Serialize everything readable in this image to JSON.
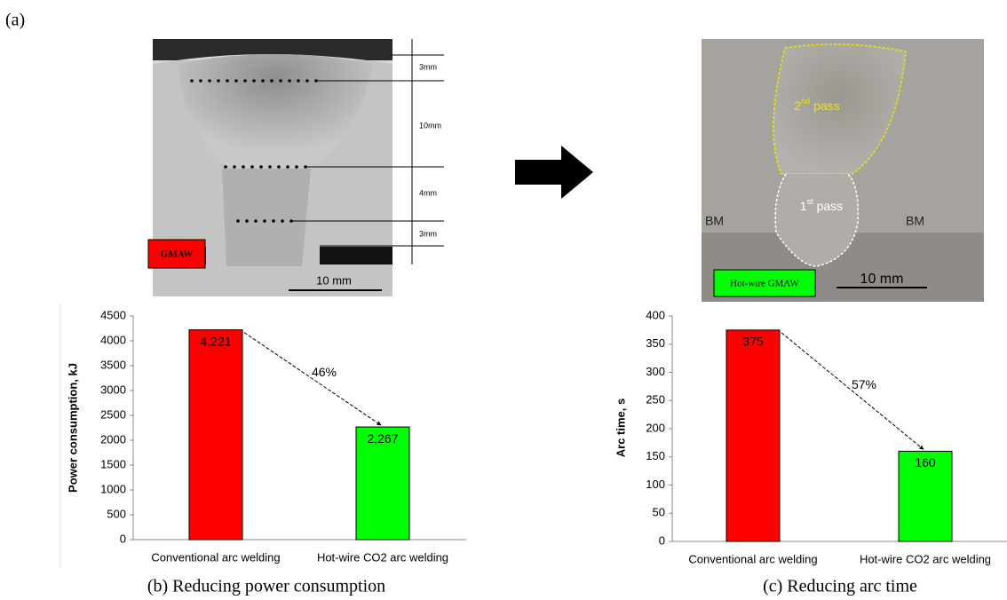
{
  "figure": {
    "panel_a": "(a)",
    "left_photo": {
      "dimensions": [
        "3mm",
        "10mm",
        "4mm",
        "3mm"
      ],
      "scale": "10 mm",
      "process": "GMAW"
    },
    "right_photo": {
      "pass2": [
        "2",
        "nd",
        "pass"
      ],
      "pass1": [
        "1",
        "st",
        "pass"
      ],
      "bm_left": "BM",
      "bm_right": "BM",
      "scale": "10 mm",
      "process": "Hot-wire GMAW"
    }
  },
  "chart_data": [
    {
      "type": "bar",
      "caption": "(b) Reducing power consumption",
      "y_label": "Power consumption, kJ",
      "categories": [
        "Conventional arc welding",
        "Hot-wire CO2 arc welding"
      ],
      "values": [
        4221,
        2267
      ],
      "value_labels": [
        "4,221",
        "2,267"
      ],
      "colors": [
        "#ff0000",
        "#00ff00"
      ],
      "ylim": [
        0,
        4500
      ],
      "yticks": [
        0,
        500,
        1000,
        1500,
        2000,
        2500,
        3000,
        3500,
        4000,
        4500
      ],
      "annotation": "46%"
    },
    {
      "type": "bar",
      "caption": "(c) Reducing arc time",
      "y_label": "Arc time, s",
      "categories": [
        "Conventional arc welding",
        "Hot-wire CO2 arc welding"
      ],
      "values": [
        375,
        160
      ],
      "colors": [
        "#ff0000",
        "#00ff00"
      ],
      "ylim": [
        0,
        400
      ],
      "yticks": [
        0,
        50,
        100,
        150,
        200,
        250,
        300,
        350,
        400
      ],
      "annotation": "57%"
    }
  ]
}
